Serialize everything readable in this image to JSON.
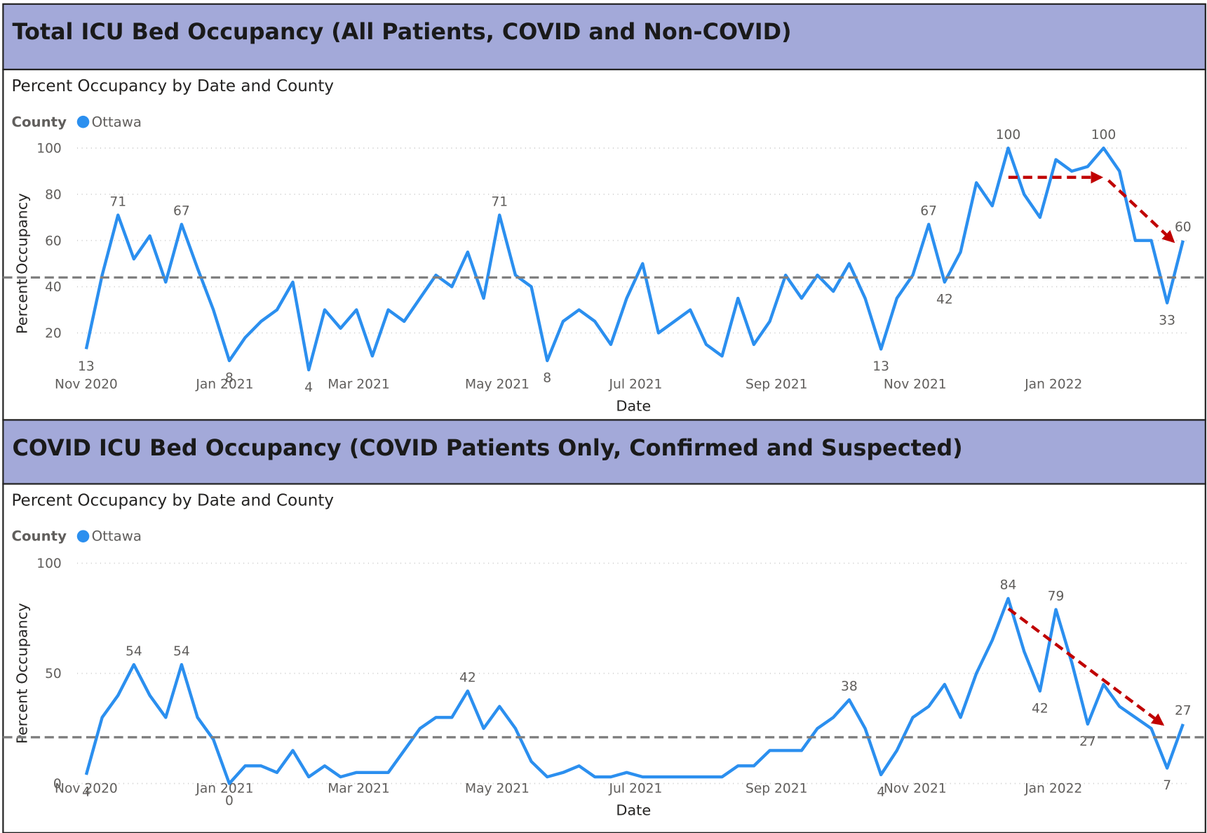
{
  "chart_data": [
    {
      "type": "line",
      "title": "Total ICU Bed Occupancy (All Patients, COVID and Non-COVID)",
      "subtitle": "Percent Occupancy by Date and County",
      "legend_title": "County",
      "x_label": "Date",
      "y_label": "Percent Occupancy",
      "reference_line": 44,
      "x": [
        0,
        7,
        14,
        21,
        28,
        35,
        42,
        49,
        56,
        63,
        70,
        77,
        84,
        91,
        98,
        105,
        112,
        119,
        126,
        133,
        140,
        147,
        154,
        161,
        168,
        175,
        182,
        189,
        196,
        203,
        210,
        217,
        224,
        231,
        238,
        245,
        252,
        259,
        266,
        273,
        280,
        287,
        294,
        301,
        308,
        315,
        322,
        329,
        336,
        343,
        350,
        357,
        364,
        371,
        378,
        385,
        392,
        399,
        406,
        413,
        420,
        427,
        434,
        441,
        448,
        455,
        462,
        469,
        476,
        483
      ],
      "xlim": [
        -4,
        486
      ],
      "xticks": [
        {
          "value": 0,
          "label": "Nov 2020"
        },
        {
          "value": 61,
          "label": "Jan 2021"
        },
        {
          "value": 120,
          "label": "Mar 2021"
        },
        {
          "value": 181,
          "label": "May 2021"
        },
        {
          "value": 242,
          "label": "Jul 2021"
        },
        {
          "value": 304,
          "label": "Sep 2021"
        },
        {
          "value": 365,
          "label": "Nov 2021"
        },
        {
          "value": 426,
          "label": "Jan 2022"
        }
      ],
      "ylim": [
        0,
        100
      ],
      "yticks": [
        20,
        40,
        60,
        80,
        100
      ],
      "grid": true,
      "series": [
        {
          "name": "Ottawa",
          "color": "#2b8fef",
          "values": [
            13,
            45,
            71,
            52,
            62,
            42,
            67,
            48,
            30,
            8,
            18,
            25,
            30,
            42,
            4,
            30,
            22,
            30,
            10,
            30,
            25,
            35,
            45,
            40,
            55,
            35,
            71,
            45,
            40,
            8,
            25,
            30,
            25,
            15,
            35,
            50,
            20,
            25,
            30,
            15,
            10,
            35,
            15,
            25,
            45,
            35,
            45,
            38,
            50,
            35,
            13,
            35,
            45,
            67,
            42,
            55,
            85,
            75,
            100,
            80,
            70,
            95,
            90,
            92,
            100,
            90,
            60,
            60,
            33,
            60
          ],
          "value_labels": [
            13,
            null,
            71,
            null,
            null,
            null,
            67,
            null,
            null,
            8,
            null,
            null,
            null,
            null,
            4,
            null,
            null,
            null,
            null,
            null,
            null,
            null,
            null,
            null,
            null,
            null,
            71,
            null,
            null,
            8,
            null,
            null,
            null,
            null,
            null,
            null,
            null,
            null,
            null,
            null,
            null,
            null,
            null,
            null,
            null,
            null,
            null,
            null,
            null,
            null,
            13,
            null,
            null,
            67,
            42,
            null,
            null,
            null,
            100,
            null,
            null,
            null,
            null,
            null,
            100,
            null,
            null,
            null,
            33,
            60
          ]
        }
      ]
    },
    {
      "type": "line",
      "title": "COVID ICU Bed Occupancy (COVID Patients Only, Confirmed and Suspected)",
      "subtitle": "Percent Occupancy by Date and County",
      "legend_title": "County",
      "x_label": "Date",
      "y_label": "Percent Occupancy",
      "reference_line": 21,
      "x": [
        0,
        7,
        14,
        21,
        28,
        35,
        42,
        49,
        56,
        63,
        70,
        77,
        84,
        91,
        98,
        105,
        112,
        119,
        126,
        133,
        140,
        147,
        154,
        161,
        168,
        175,
        182,
        189,
        196,
        203,
        210,
        217,
        224,
        231,
        238,
        245,
        252,
        259,
        266,
        273,
        280,
        287,
        294,
        301,
        308,
        315,
        322,
        329,
        336,
        343,
        350,
        357,
        364,
        371,
        378,
        385,
        392,
        399,
        406,
        413,
        420,
        427,
        434,
        441,
        448,
        455,
        462,
        469,
        476,
        483
      ],
      "xlim": [
        -4,
        486
      ],
      "xticks": [
        {
          "value": 0,
          "label": "Nov 2020"
        },
        {
          "value": 61,
          "label": "Jan 2021"
        },
        {
          "value": 120,
          "label": "Mar 2021"
        },
        {
          "value": 181,
          "label": "May 2021"
        },
        {
          "value": 242,
          "label": "Jul 2021"
        },
        {
          "value": 304,
          "label": "Sep 2021"
        },
        {
          "value": 365,
          "label": "Nov 2021"
        },
        {
          "value": 426,
          "label": "Jan 2022"
        }
      ],
      "ylim": [
        0,
        100
      ],
      "yticks": [
        0,
        50,
        100
      ],
      "grid": true,
      "series": [
        {
          "name": "Ottawa",
          "color": "#2b8fef",
          "values": [
            4,
            30,
            40,
            54,
            40,
            30,
            54,
            30,
            20,
            0,
            8,
            8,
            5,
            15,
            3,
            8,
            3,
            5,
            5,
            5,
            15,
            25,
            30,
            30,
            42,
            25,
            35,
            25,
            10,
            3,
            5,
            8,
            3,
            3,
            5,
            3,
            3,
            3,
            3,
            3,
            3,
            8,
            8,
            15,
            15,
            15,
            25,
            30,
            38,
            25,
            4,
            15,
            30,
            35,
            45,
            30,
            50,
            65,
            84,
            60,
            42,
            79,
            55,
            27,
            45,
            35,
            30,
            25,
            7,
            27
          ],
          "value_labels": [
            4,
            null,
            null,
            54,
            null,
            null,
            54,
            null,
            null,
            0,
            null,
            null,
            null,
            null,
            null,
            null,
            null,
            null,
            null,
            null,
            null,
            null,
            null,
            null,
            42,
            null,
            null,
            null,
            null,
            null,
            null,
            null,
            null,
            null,
            null,
            null,
            null,
            null,
            null,
            null,
            null,
            null,
            null,
            null,
            null,
            null,
            null,
            null,
            38,
            null,
            4,
            null,
            null,
            null,
            null,
            null,
            null,
            null,
            84,
            null,
            42,
            79,
            null,
            27,
            null,
            null,
            null,
            null,
            7,
            27
          ]
        }
      ]
    }
  ]
}
